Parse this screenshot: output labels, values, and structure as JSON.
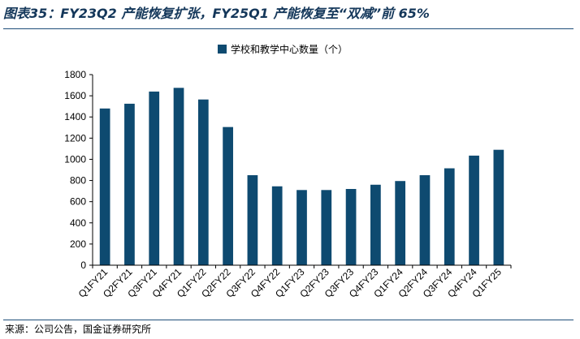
{
  "header": {
    "title": "图表35：FY23Q2 产能恢复扩张，FY25Q1 产能恢复至“双减”前 65%"
  },
  "footer": {
    "source": "来源：公司公告，国金证券研究所"
  },
  "colors": {
    "bar": "#0e4a70",
    "rule": "#1f4e79",
    "axis": "#000000"
  },
  "chart_data": {
    "type": "bar",
    "title": "",
    "xlabel": "",
    "ylabel": "",
    "ylim": [
      0,
      1800
    ],
    "yticks": [
      0,
      200,
      400,
      600,
      800,
      1000,
      1200,
      1400,
      1600,
      1800
    ],
    "legend_position": "top-center",
    "grid": false,
    "categories": [
      "Q1FY21",
      "Q2FY21",
      "Q3FY21",
      "Q4FY21",
      "Q1FY22",
      "Q2FY22",
      "Q3FY22",
      "Q4FY22",
      "Q1FY23",
      "Q2FY23",
      "Q3FY23",
      "Q4FY23",
      "Q1FY24",
      "Q2FY24",
      "Q3FY24",
      "Q4FY24",
      "Q1FY25"
    ],
    "series": [
      {
        "name": "学校和教学中心数量（个）",
        "values": [
          1480,
          1525,
          1640,
          1675,
          1565,
          1305,
          850,
          745,
          710,
          710,
          720,
          760,
          795,
          850,
          915,
          1035,
          1090
        ]
      }
    ]
  }
}
